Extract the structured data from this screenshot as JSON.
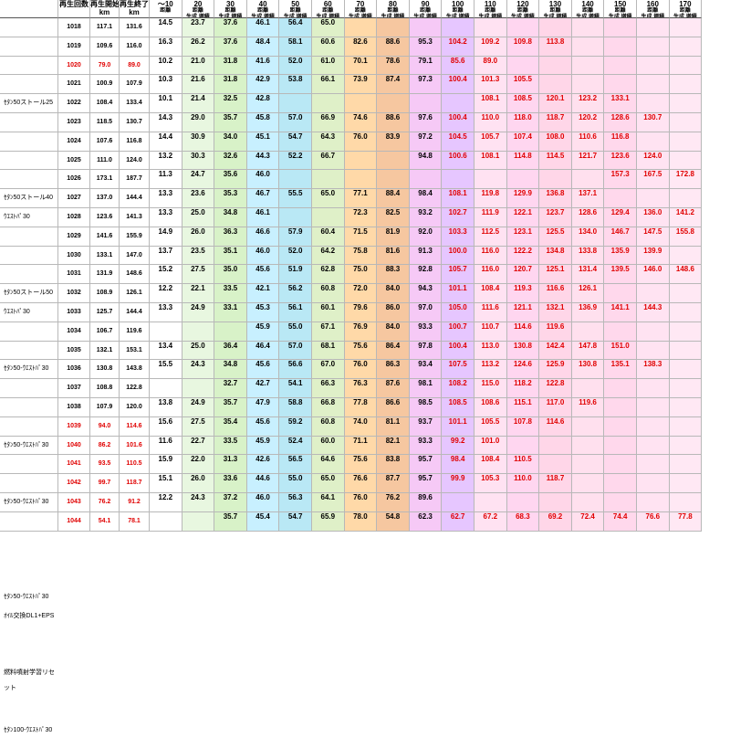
{
  "header": {
    "col_rank": "再生回数",
    "col_start": "再生開始",
    "col_start_unit": "km",
    "col_end": "再生終了",
    "col_end_unit": "km",
    "km_labels": [
      "～10",
      "20",
      "30",
      "40",
      "50",
      "60",
      "70",
      "80",
      "90",
      "100",
      "110",
      "120",
      "130",
      "140",
      "150",
      "160",
      "170"
    ],
    "sub_dist": "距離",
    "sub_gen_inc": "生成,増積",
    "sub_gen": "生成",
    "sub_inc": "増積"
  },
  "notes": [
    {
      "row": 4,
      "text": "ｾﾀﾝ50ストール25"
    },
    {
      "row": 9,
      "text": "ｾﾀﾝ50ストール40"
    },
    {
      "row": 10,
      "text": "ｳｴｽﾄﾊﾟ30"
    },
    {
      "row": 14,
      "text": "ｾﾀﾝ50ストール50"
    },
    {
      "row": 15,
      "text": "ｳｴｽﾄﾊﾟ30"
    },
    {
      "row": 18,
      "text": "ｾﾀﾝ50-ｳｴｽﾄﾊﾟ30"
    },
    {
      "row": 22,
      "text": "ｾﾀﾝ50-ｳｴｽﾄﾊﾟ30"
    },
    {
      "row": 25,
      "text": "ｾﾀﾝ50-ｳｴｽﾄﾊﾟ30"
    },
    {
      "row": 30,
      "text": "ｾﾀﾝ50-ｳｴｽﾄﾊﾟ30"
    },
    {
      "row": 31,
      "text": "ｵｲﾙ交換DL1+EPS"
    },
    {
      "row": 34,
      "text": "燃料噴射学習リセット"
    },
    {
      "row": 37,
      "text": "ｾﾀﾝ100-ｳｴｽﾄﾊﾟ30"
    }
  ],
  "rows": [
    {
      "rank": "1018",
      "start": "117.1",
      "end": "131.6",
      "red": false
    },
    {
      "rank": "1019",
      "start": "109.6",
      "end": "116.0",
      "red": false
    },
    {
      "rank": "1020",
      "start": "79.0",
      "end": "89.0",
      "red": true
    },
    {
      "rank": "1021",
      "start": "100.9",
      "end": "107.9",
      "red": false
    },
    {
      "rank": "1022",
      "start": "108.4",
      "end": "133.4",
      "red": false
    },
    {
      "rank": "1023",
      "start": "118.5",
      "end": "130.7",
      "red": false
    },
    {
      "rank": "1024",
      "start": "107.6",
      "end": "116.8",
      "red": false
    },
    {
      "rank": "1025",
      "start": "111.0",
      "end": "124.0",
      "red": false
    },
    {
      "rank": "1026",
      "start": "173.1",
      "end": "187.7",
      "red": false
    },
    {
      "rank": "1027",
      "start": "137.0",
      "end": "144.4",
      "red": false
    },
    {
      "rank": "1028",
      "start": "123.6",
      "end": "141.3",
      "red": false
    },
    {
      "rank": "1029",
      "start": "141.6",
      "end": "155.9",
      "red": false
    },
    {
      "rank": "1030",
      "start": "133.1",
      "end": "147.0",
      "red": false
    },
    {
      "rank": "1031",
      "start": "131.9",
      "end": "148.6",
      "red": false
    },
    {
      "rank": "1032",
      "start": "108.9",
      "end": "126.1",
      "red": false
    },
    {
      "rank": "1033",
      "start": "125.7",
      "end": "144.4",
      "red": false
    },
    {
      "rank": "1034",
      "start": "106.7",
      "end": "119.6",
      "red": false
    },
    {
      "rank": "1035",
      "start": "132.1",
      "end": "153.1",
      "red": false
    },
    {
      "rank": "1036",
      "start": "130.8",
      "end": "143.8",
      "red": false
    },
    {
      "rank": "1037",
      "start": "108.8",
      "end": "122.8",
      "red": false
    },
    {
      "rank": "1038",
      "start": "107.9",
      "end": "120.0",
      "red": false
    },
    {
      "rank": "1039",
      "start": "94.0",
      "end": "114.6",
      "red": true
    },
    {
      "rank": "1040",
      "start": "86.2",
      "end": "101.6",
      "red": true
    },
    {
      "rank": "1041",
      "start": "93.5",
      "end": "110.5",
      "red": true
    },
    {
      "rank": "1042",
      "start": "99.7",
      "end": "118.7",
      "red": true
    },
    {
      "rank": "1043",
      "start": "76.2",
      "end": "91.2",
      "red": true
    },
    {
      "rank": "1044",
      "start": "54.1",
      "end": "78.1",
      "red": true
    }
  ],
  "dist_rows": [
    {
      "row": 0,
      "cells": [
        "14.5",
        "23.7",
        "37.6",
        "46.1",
        "56.4",
        "65.0",
        "",
        "",
        "",
        "",
        "",
        "",
        "",
        "",
        "",
        "",
        ""
      ]
    },
    {
      "row": 1,
      "cells": [
        "16.3",
        "26.2",
        "37.6",
        "48.4",
        "58.1",
        "60.6",
        "82.6",
        "88.6",
        "95.3",
        "104.2",
        "109.2",
        "109.8",
        "113.8",
        "",
        "",
        "",
        ""
      ]
    },
    {
      "row": 2,
      "cells": [
        "10.2",
        "21.0",
        "31.8",
        "41.6",
        "52.0",
        "61.0",
        "70.1",
        "78.6",
        "79.1",
        "85.6",
        "89.0",
        "",
        "",
        "",
        "",
        "",
        ""
      ]
    },
    {
      "row": 3,
      "cells": [
        "10.3",
        "21.6",
        "31.8",
        "42.9",
        "53.8",
        "66.1",
        "73.9",
        "87.4",
        "97.3",
        "100.4",
        "101.3",
        "105.5",
        "",
        "",
        "",
        "",
        ""
      ]
    },
    {
      "row": 4,
      "cells": [
        "10.1",
        "21.4",
        "32.5",
        "42.8",
        "",
        "",
        "",
        "",
        "",
        "",
        "108.1",
        "108.5",
        "120.1",
        "123.2",
        "133.1",
        "",
        ""
      ]
    },
    {
      "row": 5,
      "cells": [
        "14.3",
        "29.0",
        "35.7",
        "45.8",
        "57.0",
        "66.9",
        "74.6",
        "88.6",
        "97.6",
        "100.4",
        "110.0",
        "118.0",
        "118.7",
        "120.2",
        "128.6",
        "130.7",
        ""
      ]
    },
    {
      "row": 6,
      "cells": [
        "14.4",
        "30.9",
        "34.0",
        "45.1",
        "54.7",
        "64.3",
        "76.0",
        "83.9",
        "97.2",
        "104.5",
        "105.7",
        "107.4",
        "108.0",
        "110.6",
        "116.8",
        "",
        ""
      ]
    },
    {
      "row": 7,
      "cells": [
        "13.2",
        "30.3",
        "32.6",
        "44.3",
        "52.2",
        "66.7",
        "",
        "",
        "94.8",
        "100.6",
        "108.1",
        "114.8",
        "114.5",
        "121.7",
        "123.6",
        "124.0",
        ""
      ]
    },
    {
      "row": 8,
      "cells": [
        "11.3",
        "24.7",
        "35.6",
        "46.0",
        "",
        "",
        "",
        "",
        "",
        "",
        "",
        "",
        "",
        "",
        "157.3",
        "167.5",
        "172.8"
      ]
    },
    {
      "row": 9,
      "cells": [
        "13.3",
        "23.6",
        "35.3",
        "46.7",
        "55.5",
        "65.0",
        "77.1",
        "88.4",
        "98.4",
        "108.1",
        "119.8",
        "129.9",
        "136.8",
        "137.1",
        "",
        "",
        ""
      ]
    },
    {
      "row": 10,
      "cells": [
        "13.3",
        "25.0",
        "34.8",
        "46.1",
        "",
        "",
        "72.3",
        "82.5",
        "93.2",
        "102.7",
        "111.9",
        "122.1",
        "123.7",
        "128.6",
        "129.4",
        "136.0",
        "141.2"
      ]
    },
    {
      "row": 11,
      "cells": [
        "14.9",
        "26.0",
        "36.3",
        "46.6",
        "57.9",
        "60.4",
        "71.5",
        "81.9",
        "92.0",
        "103.3",
        "112.5",
        "123.1",
        "125.5",
        "134.0",
        "146.7",
        "147.5",
        "155.8"
      ]
    },
    {
      "row": 12,
      "cells": [
        "13.7",
        "23.5",
        "35.1",
        "46.0",
        "52.0",
        "64.2",
        "75.8",
        "81.6",
        "91.3",
        "100.0",
        "116.0",
        "122.2",
        "134.8",
        "133.8",
        "135.9",
        "139.9",
        ""
      ]
    },
    {
      "row": 13,
      "cells": [
        "15.2",
        "27.5",
        "35.0",
        "45.6",
        "51.9",
        "62.8",
        "75.0",
        "88.3",
        "92.8",
        "105.7",
        "116.0",
        "120.7",
        "125.1",
        "131.4",
        "139.5",
        "146.0",
        "148.6"
      ]
    },
    {
      "row": 14,
      "cells": [
        "12.2",
        "22.1",
        "33.5",
        "42.1",
        "56.2",
        "60.8",
        "72.0",
        "84.0",
        "94.3",
        "101.1",
        "108.4",
        "119.3",
        "116.6",
        "126.1",
        "",
        "",
        ""
      ]
    },
    {
      "row": 15,
      "cells": [
        "13.3",
        "24.9",
        "33.1",
        "45.3",
        "56.1",
        "60.1",
        "79.6",
        "86.0",
        "97.0",
        "105.0",
        "111.6",
        "121.1",
        "132.1",
        "136.9",
        "141.1",
        "144.3",
        ""
      ]
    },
    {
      "row": 16,
      "cells": [
        "",
        "",
        "",
        "45.9",
        "55.0",
        "67.1",
        "76.9",
        "84.0",
        "93.3",
        "100.7",
        "110.7",
        "114.6",
        "119.6",
        "",
        "",
        "",
        ""
      ]
    },
    {
      "row": 17,
      "cells": [
        "13.4",
        "25.0",
        "36.4",
        "46.4",
        "57.0",
        "68.1",
        "75.6",
        "86.4",
        "97.8",
        "100.4",
        "113.0",
        "130.8",
        "142.4",
        "147.8",
        "151.0",
        "",
        ""
      ]
    },
    {
      "row": 18,
      "cells": [
        "15.5",
        "24.3",
        "34.8",
        "45.6",
        "56.6",
        "67.0",
        "76.0",
        "86.3",
        "93.4",
        "107.5",
        "113.2",
        "124.6",
        "125.9",
        "130.8",
        "135.1",
        "138.3",
        ""
      ]
    },
    {
      "row": 19,
      "cells": [
        "",
        "",
        "32.7",
        "42.7",
        "54.1",
        "66.3",
        "76.3",
        "87.6",
        "98.1",
        "108.2",
        "115.0",
        "118.2",
        "122.8",
        "",
        "",
        "",
        ""
      ]
    },
    {
      "row": 20,
      "cells": [
        "13.8",
        "24.9",
        "35.7",
        "47.9",
        "58.8",
        "66.8",
        "77.8",
        "86.6",
        "98.5",
        "108.5",
        "108.6",
        "115.1",
        "117.0",
        "119.6",
        "",
        "",
        ""
      ]
    },
    {
      "row": 21,
      "cells": [
        "15.6",
        "27.5",
        "35.4",
        "45.6",
        "59.2",
        "60.8",
        "74.0",
        "81.1",
        "93.7",
        "101.1",
        "105.5",
        "107.8",
        "114.6",
        "",
        "",
        "",
        ""
      ]
    },
    {
      "row": 22,
      "cells": [
        "11.6",
        "22.7",
        "33.5",
        "45.9",
        "52.4",
        "60.0",
        "71.1",
        "82.1",
        "93.3",
        "99.2",
        "101.0",
        "",
        "",
        "",
        "",
        "",
        ""
      ]
    },
    {
      "row": 23,
      "cells": [
        "15.9",
        "22.0",
        "31.3",
        "42.6",
        "56.5",
        "64.6",
        "75.6",
        "83.8",
        "95.7",
        "98.4",
        "108.4",
        "110.5",
        "",
        "",
        "",
        "",
        ""
      ]
    },
    {
      "row": 24,
      "cells": [
        "15.1",
        "26.0",
        "33.6",
        "44.6",
        "55.0",
        "65.0",
        "76.6",
        "87.7",
        "95.7",
        "99.9",
        "105.3",
        "110.0",
        "118.7",
        "",
        "",
        "",
        ""
      ]
    },
    {
      "row": 25,
      "cells": [
        "12.2",
        "24.3",
        "37.2",
        "46.0",
        "56.3",
        "64.1",
        "76.0",
        "76.2",
        "89.6",
        "",
        "",
        "",
        "",
        "",
        "",
        "",
        ""
      ]
    },
    {
      "row": 26,
      "cells": [
        "",
        "",
        "35.7",
        "45.4",
        "54.7",
        "65.9",
        "78.0",
        "54.8",
        "62.3",
        "62.7",
        "67.2",
        "68.3",
        "69.2",
        "72.4",
        "74.4",
        "76.6",
        "77.8"
      ]
    }
  ],
  "colors": {
    "c10": "#ffffff",
    "c20": "#e8f7e0",
    "c30": "#d8f2c8",
    "c40": "#c8f0ff",
    "c50": "#b9e8f5",
    "c60": "#dff0c8",
    "c70": "#ffd9a8",
    "c80": "#f6c7a0",
    "c90": "#f6c9f6",
    "c100": "#e6c6ff",
    "c110": "#ffe2f2",
    "c120": "#ffd6f0",
    "c130": "#ffd6e8",
    "c140": "#ffe0ee",
    "c150": "#ffd8ec",
    "c160": "#ffe3f2",
    "c170": "#ffe8f4",
    "dist_red": "#e00000"
  }
}
